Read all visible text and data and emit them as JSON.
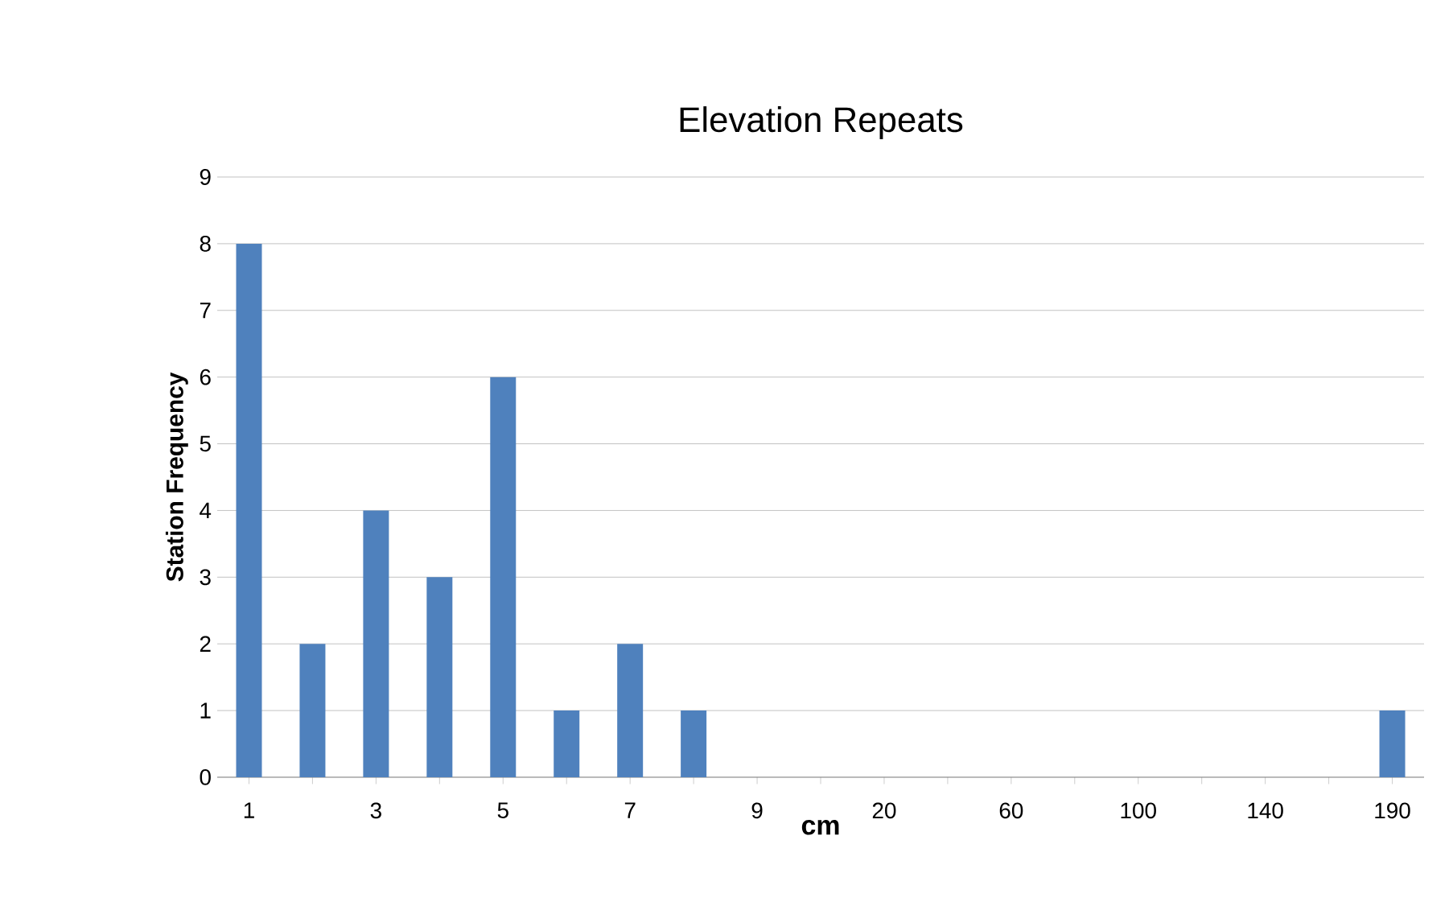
{
  "chart_data": {
    "type": "bar",
    "title": "Elevation Repeats",
    "xlabel": "cm",
    "ylabel": "Station Frequency",
    "categories": [
      "1",
      null,
      "3",
      null,
      "5",
      null,
      "7",
      null,
      "9",
      null,
      "20",
      null,
      "60",
      null,
      "100",
      null,
      "140",
      null,
      "190"
    ],
    "values": [
      8,
      2,
      4,
      3,
      6,
      1,
      2,
      1,
      0,
      0,
      0,
      0,
      0,
      0,
      0,
      0,
      0,
      0,
      1
    ],
    "color": "#4f81bd",
    "ylim": [
      0,
      9
    ],
    "yticks": [
      0,
      1,
      2,
      3,
      4,
      5,
      6,
      7,
      8,
      9
    ],
    "grid": "y"
  }
}
